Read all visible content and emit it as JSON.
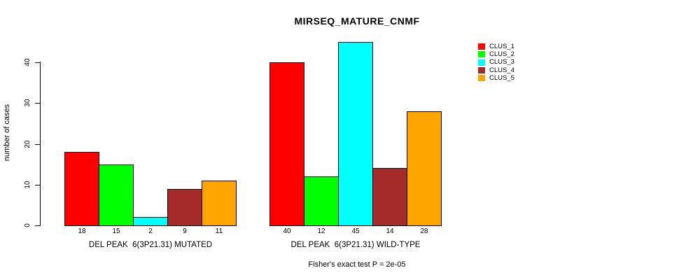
{
  "chart_data": {
    "type": "bar",
    "title": "MIRSEQ_MATURE_CNMF",
    "xlabel": "",
    "ylabel": "number of cases",
    "ylim": [
      0,
      45
    ],
    "yticks": [
      0,
      10,
      20,
      30,
      40
    ],
    "grid": false,
    "legend_position": "right",
    "categories": [
      "DEL PEAK  6(3P21.31) MUTATED",
      "DEL PEAK  6(3P21.31) WILD-TYPE"
    ],
    "series": [
      {
        "name": "CLUS_1",
        "color": "#FF0000",
        "values": [
          18,
          40
        ]
      },
      {
        "name": "CLUS_2",
        "color": "#00FF00",
        "values": [
          15,
          12
        ]
      },
      {
        "name": "CLUS_3",
        "color": "#00FFFF",
        "values": [
          2,
          45
        ]
      },
      {
        "name": "CLUS_4",
        "color": "#A52A2A",
        "values": [
          9,
          14
        ]
      },
      {
        "name": "CLUS_5",
        "color": "#FFA500",
        "values": [
          11,
          28
        ]
      }
    ],
    "groups": [
      {
        "label": "DEL PEAK  6(3P21.31) MUTATED",
        "values": [
          18,
          15,
          2,
          9,
          11
        ]
      },
      {
        "label": "DEL PEAK  6(3P21.31) WILD-TYPE",
        "values": [
          40,
          12,
          45,
          14,
          28
        ]
      }
    ],
    "annotation": "Fisher's exact test P = 2e-05",
    "bar_outline_color": "#000000"
  }
}
